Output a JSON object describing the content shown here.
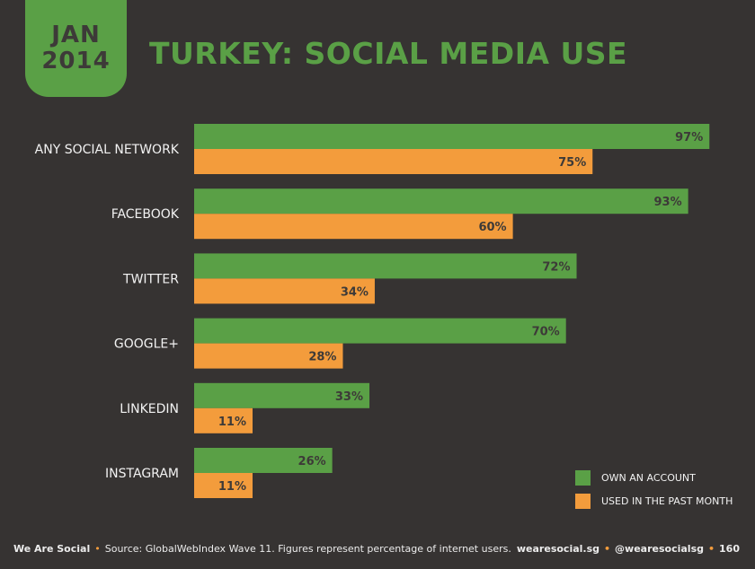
{
  "header": {
    "month": "JAN",
    "year": "2014",
    "title": "TURKEY: SOCIAL MEDIA USE"
  },
  "colors": {
    "own_account": "#5aa046",
    "used_past_month": "#f39c3c",
    "background": "#363332"
  },
  "chart_data": {
    "type": "bar",
    "orientation": "horizontal",
    "title": "TURKEY: SOCIAL MEDIA USE",
    "categories": [
      "ANY SOCIAL NETWORK",
      "FACEBOOK",
      "TWITTER",
      "GOOGLE+",
      "LINKEDIN",
      "INSTAGRAM"
    ],
    "series": [
      {
        "name": "OWN AN ACCOUNT",
        "values": [
          97,
          93,
          72,
          70,
          33,
          26
        ]
      },
      {
        "name": "USED IN THE PAST MONTH",
        "values": [
          75,
          60,
          34,
          28,
          11,
          11
        ]
      }
    ],
    "value_suffix": "%",
    "xlim": [
      0,
      100
    ],
    "grid": false,
    "legend_position": "bottom-right"
  },
  "footer": {
    "brand": "We Are Social",
    "source": "Source: GlobalWebIndex Wave 11. Figures represent percentage of internet users.",
    "site": "wearesocial.sg",
    "handle": "@wearesocialsg",
    "page": "160"
  }
}
